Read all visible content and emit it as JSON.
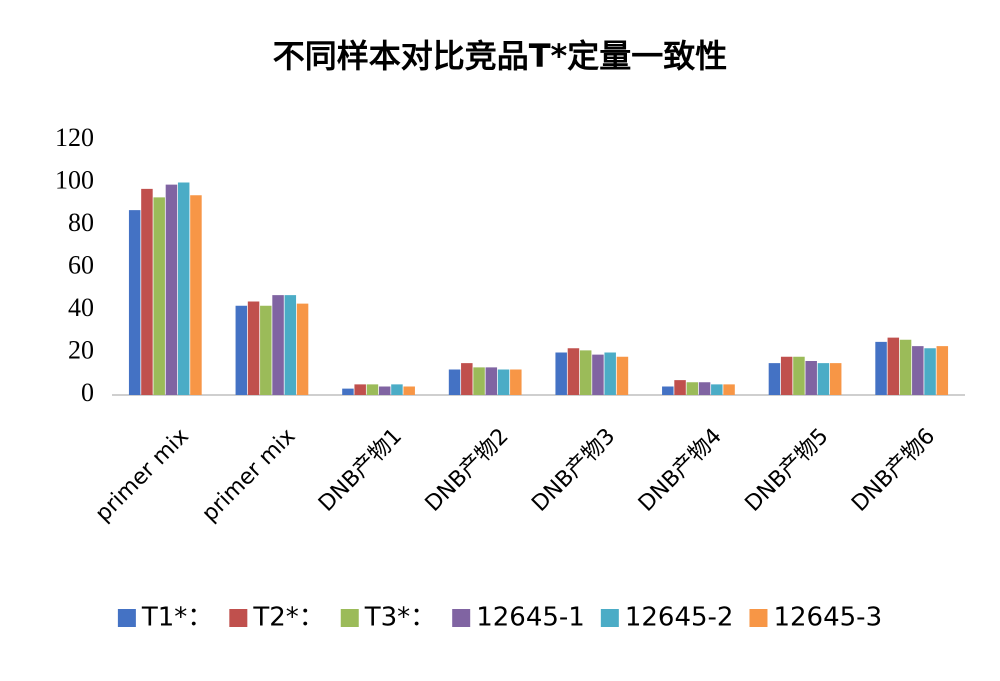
{
  "chart_data": {
    "type": "bar",
    "title": "不同样本对比竞品T*定量一致性",
    "categories": [
      "primer mix",
      "primer mix",
      "DNB产物1",
      "DNB产物2",
      "DNB产物3",
      "DNB产物4",
      "DNB产物5",
      "DNB产物6"
    ],
    "series": [
      {
        "name": "T1*：",
        "color": "#4472c4",
        "values": [
          87,
          42,
          3,
          12,
          20,
          4,
          15,
          25
        ]
      },
      {
        "name": "T2*：",
        "color": "#c0504d",
        "values": [
          97,
          44,
          5,
          15,
          22,
          7,
          18,
          27
        ]
      },
      {
        "name": "T3*：",
        "color": "#9bbb59",
        "values": [
          93,
          42,
          5,
          13,
          21,
          6,
          18,
          26
        ]
      },
      {
        "name": "12645-1",
        "color": "#8064a2",
        "values": [
          99,
          47,
          4,
          13,
          19,
          6,
          16,
          23
        ]
      },
      {
        "name": "12645-2",
        "color": "#4bacc6",
        "values": [
          100,
          47,
          5,
          12,
          20,
          5,
          15,
          22
        ]
      },
      {
        "name": "12645-3",
        "color": "#f79646",
        "values": [
          94,
          43,
          4,
          12,
          18,
          5,
          15,
          23
        ]
      }
    ],
    "ylim": [
      0,
      120
    ],
    "yticks": [
      0,
      20,
      40,
      60,
      80,
      100,
      120
    ],
    "grid": false,
    "legend": "bottom"
  }
}
